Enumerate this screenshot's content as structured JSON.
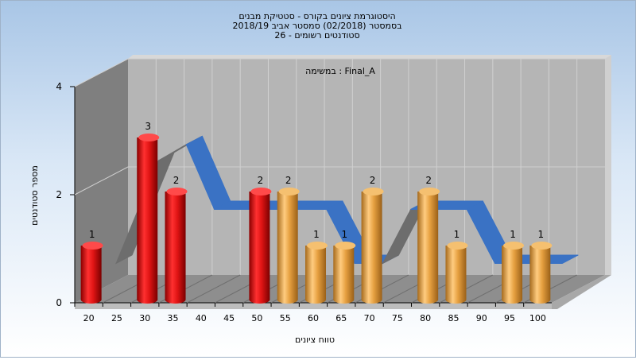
{
  "chart_data": {
    "type": "bar",
    "title_lines": [
      "היסטוגרמת ציונים בקורס - סטטיקת מבנים",
      "בסמסטר  (02/2018)  סמסטר אביב 2018/19",
      "סטודנטים רשומים - 26"
    ],
    "inner_label": "במשימה : Final_A",
    "xlabel": "טווח ציונים",
    "ylabel": "מספר סטודנטים",
    "x_ticks": [
      "20",
      "25",
      "30",
      "35",
      "40",
      "45",
      "50",
      "55",
      "60",
      "65",
      "70",
      "75",
      "80",
      "85",
      "90",
      "95",
      "100"
    ],
    "y_ticks": [
      "0",
      "2",
      "4"
    ],
    "ylim": [
      0,
      4
    ],
    "grid": true,
    "bars": [
      {
        "x": 20,
        "value": 1,
        "color": "red"
      },
      {
        "x": 30,
        "value": 3,
        "color": "red"
      },
      {
        "x": 35,
        "value": 2,
        "color": "red"
      },
      {
        "x": 50,
        "value": 2,
        "color": "red"
      },
      {
        "x": 55,
        "value": 2,
        "color": "orange"
      },
      {
        "x": 60,
        "value": 1,
        "color": "orange"
      },
      {
        "x": 65,
        "value": 1,
        "color": "orange"
      },
      {
        "x": 70,
        "value": 2,
        "color": "orange"
      },
      {
        "x": 80,
        "value": 2,
        "color": "orange"
      },
      {
        "x": 85,
        "value": 1,
        "color": "orange"
      },
      {
        "x": 95,
        "value": 1,
        "color": "orange"
      },
      {
        "x": 100,
        "value": 1,
        "color": "orange"
      }
    ],
    "trend_line": {
      "x": [
        22.5,
        30,
        35,
        40,
        45,
        50,
        55,
        60,
        65,
        70,
        75,
        80,
        85,
        90,
        95,
        100,
        102
      ],
      "values": [
        0.6,
        2.5,
        2.8,
        1.6,
        1.6,
        1.6,
        1.6,
        1.6,
        0.6,
        0.6,
        1.6,
        1.6,
        1.6,
        0.6,
        0.6,
        0.6,
        0.6
      ]
    },
    "colors": {
      "red": "#e01414",
      "orange": "#e6a040",
      "ribbon_top": "#3a72c4",
      "ribbon_side": "#6d6d6d"
    }
  }
}
